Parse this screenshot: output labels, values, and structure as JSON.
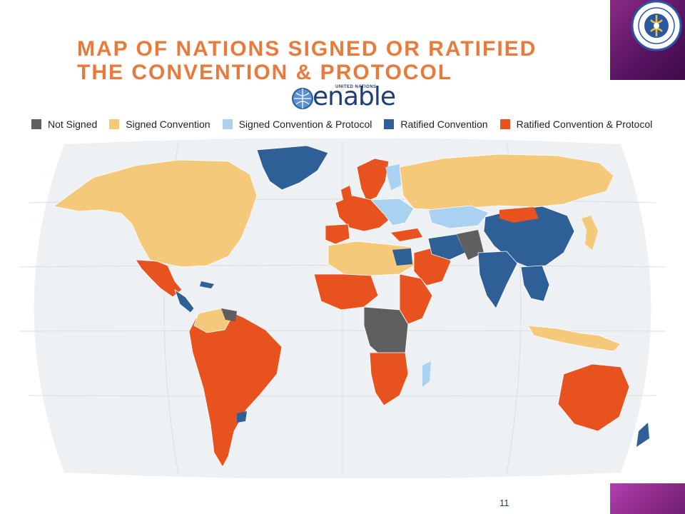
{
  "slide": {
    "title": "MAP OF NATIONS SIGNED OR RATIFIED THE CONVENTION & PROTOCOL",
    "page_number": "11"
  },
  "logo": {
    "text": "enable",
    "caption": "UNITED NATIONS"
  },
  "legend": [
    {
      "label": "Not Signed",
      "color": "#5f5f5f"
    },
    {
      "label": "Signed Convention",
      "color": "#f5c97a"
    },
    {
      "label": "Signed Convention & Protocol",
      "color": "#a9d1f0"
    },
    {
      "label": "Ratified Convention",
      "color": "#2e5f96"
    },
    {
      "label": "Ratified Convention & Protocol",
      "color": "#e8521f"
    }
  ],
  "colors": {
    "ocean": "#eef1f4",
    "corner_accent": "#7a2479"
  }
}
